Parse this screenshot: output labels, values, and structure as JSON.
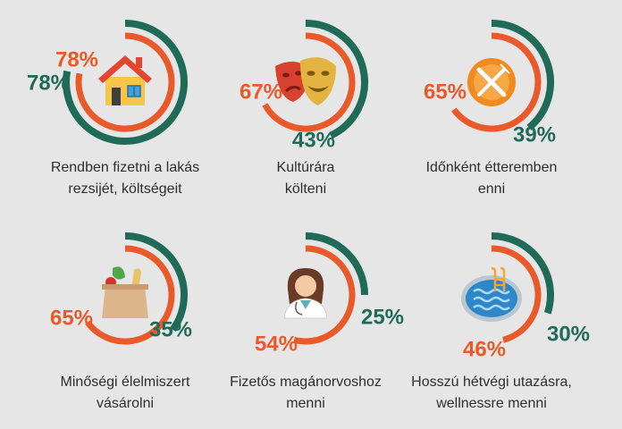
{
  "colors": {
    "outer": "#1f6b57",
    "inner": "#e9592a",
    "background": "#e6e6e6"
  },
  "chart_data": {
    "type": "radial-bar",
    "series": [
      {
        "name": "outer ring",
        "color": "#1f6b57"
      },
      {
        "name": "inner ring",
        "color": "#e9592a"
      }
    ],
    "items": [
      {
        "label_lines": [
          "Rendben fizetni a lakás",
          "rezsijét, költségeit"
        ],
        "icon": "house-icon",
        "outer_value": 78,
        "inner_value": 78,
        "outer_label": "78%",
        "inner_label": "78%"
      },
      {
        "label_lines": [
          "Kultúrára",
          "költeni"
        ],
        "icon": "theater-masks-icon",
        "outer_value": 43,
        "inner_value": 67,
        "outer_label": "43%",
        "inner_label": "67%"
      },
      {
        "label_lines": [
          "Időnként étteremben",
          "enni"
        ],
        "icon": "fork-knife-icon",
        "outer_value": 39,
        "inner_value": 65,
        "outer_label": "39%",
        "inner_label": "65%"
      },
      {
        "label_lines": [
          "Minőségi élelmiszert",
          "vásárolni"
        ],
        "icon": "grocery-bag-icon",
        "outer_value": 35,
        "inner_value": 65,
        "outer_label": "35%",
        "inner_label": "65%"
      },
      {
        "label_lines": [
          "Fizetős magánorvoshoz",
          "menni"
        ],
        "icon": "doctor-icon",
        "outer_value": 25,
        "inner_value": 54,
        "outer_label": "25%",
        "inner_label": "54%"
      },
      {
        "label_lines": [
          "Hosszú hétvégi utazásra,",
          "wellnessre menni"
        ],
        "icon": "swimming-pool-icon",
        "outer_value": 30,
        "inner_value": 46,
        "outer_label": "30%",
        "inner_label": "46%"
      }
    ]
  }
}
